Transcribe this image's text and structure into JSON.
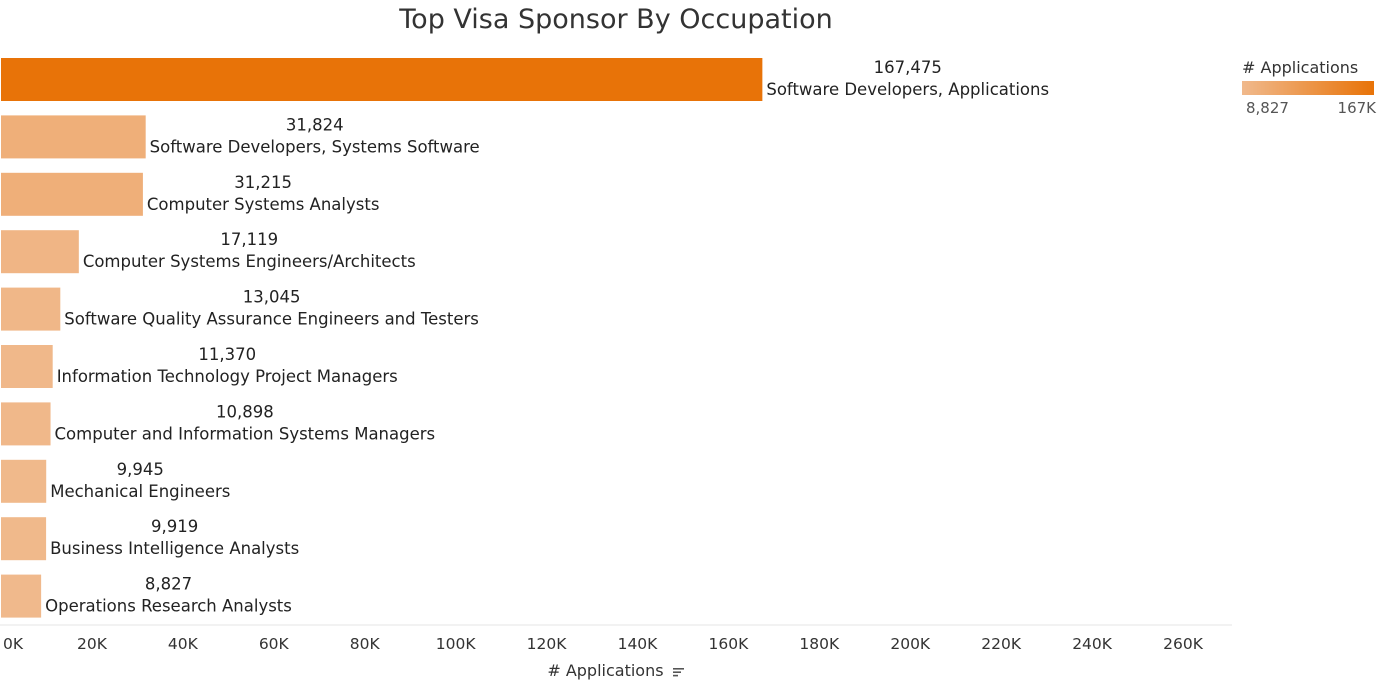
{
  "chart_data": {
    "type": "bar",
    "orientation": "horizontal",
    "title": "Top Visa Sponsor By Occupation",
    "xlabel": "# Applications",
    "ylabel": "",
    "xlim": [
      0,
      260000
    ],
    "xticks": [
      "0K",
      "20K",
      "40K",
      "60K",
      "80K",
      "100K",
      "120K",
      "140K",
      "160K",
      "180K",
      "200K",
      "220K",
      "240K",
      "260K"
    ],
    "categories": [
      "Software Developers, Applications",
      "Software Developers, Systems Software",
      "Computer Systems Analysts",
      "Computer Systems Engineers/Architects",
      "Software Quality Assurance Engineers and Testers",
      "Information Technology Project Managers",
      "Computer and Information Systems Managers",
      "Mechanical Engineers",
      "Business Intelligence Analysts",
      "Operations Research Analysts"
    ],
    "values": [
      167475,
      31824,
      31215,
      17119,
      13045,
      11370,
      10898,
      9945,
      9919,
      8827
    ],
    "value_labels": [
      "167,475",
      "31,824",
      "31,215",
      "17,119",
      "13,045",
      "11,370",
      "10,898",
      "9,945",
      "9,919",
      "8,827"
    ],
    "grid": false,
    "legend_position": "top-right",
    "colors": {
      "min": "#f0b98c",
      "max": "#e87308"
    }
  },
  "legend": {
    "title": "# Applications",
    "min_label": "8,827",
    "max_label": "167K"
  },
  "icons": {
    "sort": "sort-descending-icon"
  }
}
